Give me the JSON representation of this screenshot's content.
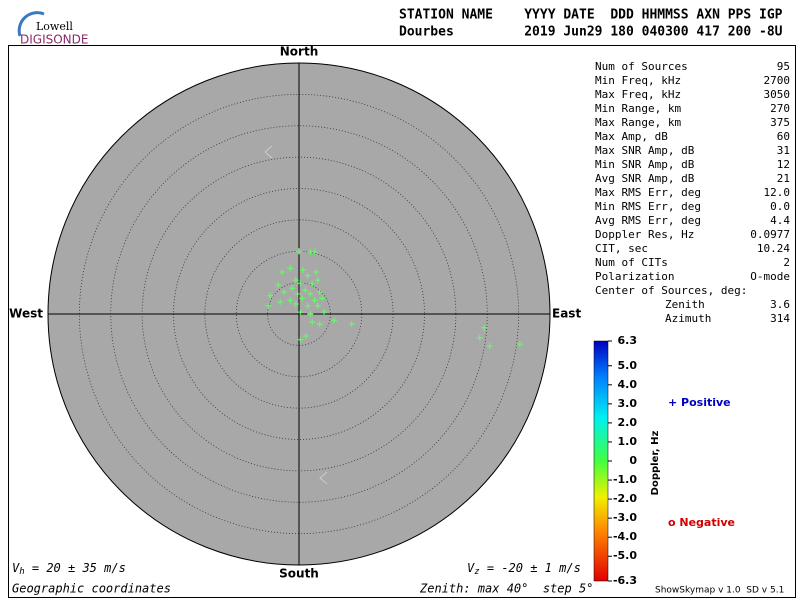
{
  "logo": {
    "top": "Lowell",
    "bottom": "DIGISONDE"
  },
  "header": {
    "labels": "STATION NAME    YYYY DATE  DDD HHMMSS AXN PPS IGP",
    "values": "Dourbes         2019 Jun29 180 040300 417 200 -8U"
  },
  "directions": {
    "north": "North",
    "south": "South",
    "east": "East",
    "west": "West"
  },
  "stats": {
    "rows": [
      [
        "Num of Sources",
        "95"
      ],
      [
        "Min Freq, kHz",
        "2700"
      ],
      [
        "Max Freq, kHz",
        "3050"
      ],
      [
        "Min Range, km",
        "270"
      ],
      [
        "Max Range, km",
        "375"
      ],
      [
        "Max Amp, dB",
        "60"
      ],
      [
        "Max SNR Amp, dB",
        "31"
      ],
      [
        "Min SNR Amp, dB",
        "12"
      ],
      [
        "Avg SNR Amp, dB",
        "21"
      ],
      [
        "Max RMS Err, deg",
        "12.0"
      ],
      [
        "Min RMS Err, deg",
        "0.0"
      ],
      [
        "Avg RMS Err, deg",
        "4.4"
      ],
      [
        "Doppler Res, Hz",
        "0.0977"
      ],
      [
        "CIT, sec",
        "10.24"
      ],
      [
        "Num of CITs",
        "2"
      ],
      [
        "Polarization",
        "O-mode"
      ]
    ],
    "center_title": "Center of Sources, deg:",
    "center_rows": [
      [
        "Zenith",
        "3.6"
      ],
      [
        "Azimuth",
        "314"
      ]
    ]
  },
  "colorbar": {
    "label": "Doppler, Hz",
    "lim": [
      -6.3,
      6.3
    ],
    "ticks": [
      6.3,
      {
        "value": 5,
        "label": "5.0"
      },
      {
        "value": 4,
        "label": "4.0"
      },
      {
        "value": 3,
        "label": "3.0"
      },
      {
        "value": 2,
        "label": "2.0"
      },
      {
        "value": 1,
        "label": "1.0"
      },
      0,
      {
        "value": -1,
        "label": "-1.0"
      },
      {
        "value": -2,
        "label": "-2.0"
      },
      {
        "value": -3,
        "label": "-3.0"
      },
      {
        "value": -4,
        "label": "-4.0"
      },
      {
        "value": -5,
        "label": "-5.0"
      },
      -6.3
    ]
  },
  "legend": {
    "positive": "+ Positive",
    "negative": "o Negative"
  },
  "sources": [
    {
      "east": 0,
      "north": 10.0
    },
    {
      "east": 1.8,
      "north": 9.9
    },
    {
      "east": 2.5,
      "north": 9.9
    },
    {
      "east": -1.4,
      "north": 7.3
    },
    {
      "east": -2.7,
      "north": 6.7
    },
    {
      "east": 0.6,
      "north": 7.0
    },
    {
      "east": 2.7,
      "north": 6.7
    },
    {
      "east": 1.4,
      "north": 6.1
    },
    {
      "east": -0.5,
      "north": 5.4
    },
    {
      "east": 0.2,
      "north": 4.9
    },
    {
      "east": 2.1,
      "north": 4.8
    },
    {
      "east": 3.0,
      "north": 5.4
    },
    {
      "east": -3.3,
      "north": 4.6
    },
    {
      "east": -1.1,
      "north": 4.1
    },
    {
      "east": 1.0,
      "north": 3.8
    },
    {
      "east": -2.4,
      "north": 3.5
    },
    {
      "east": -0.2,
      "north": 3.2
    },
    {
      "east": 1.8,
      "north": 3.2
    },
    {
      "east": 3.3,
      "north": 3.5
    },
    {
      "east": -4.6,
      "north": 2.9
    },
    {
      "east": -1.4,
      "north": 2.2
    },
    {
      "east": 0.5,
      "north": 2.5
    },
    {
      "east": 2.5,
      "north": 2.2
    },
    {
      "east": 3.7,
      "north": 2.5
    },
    {
      "east": -4.9,
      "north": 1.3
    },
    {
      "east": -3.0,
      "north": 1.9
    },
    {
      "east": -0.5,
      "north": 1.6
    },
    {
      "east": 1.4,
      "north": 1.3
    },
    {
      "east": 3.0,
      "north": 1.3
    },
    {
      "east": 0.2,
      "north": 0.3
    },
    {
      "east": 1.8,
      "north": 0
    },
    {
      "east": 4.0,
      "north": 0.3
    },
    {
      "east": 5.6,
      "north": -1.0
    },
    {
      "east": 2.1,
      "north": -1.3
    },
    {
      "east": 3.3,
      "north": -1.6
    },
    {
      "east": 8.4,
      "north": -1.6
    },
    {
      "east": 1.1,
      "north": -3.5
    },
    {
      "east": 0.2,
      "north": -4.1
    },
    {
      "east": 29.5,
      "north": -2.2
    },
    {
      "east": 28.8,
      "north": -3.8
    },
    {
      "east": 30.4,
      "north": -5.1
    },
    {
      "east": 35.2,
      "north": -4.8
    }
  ],
  "footer": {
    "vh": {
      "v": "V",
      "sub": "h",
      "rest": " = 20 ± 35 m/s"
    },
    "vz": {
      "v": "V",
      "sub": "z",
      "rest": " = -20 ± 1 m/s"
    },
    "coords": "Geographic coordinates",
    "zenith": "Zenith: max 40°  step 5°",
    "version": "ShowSkymap v 1.0  SD v 5.1"
  }
}
